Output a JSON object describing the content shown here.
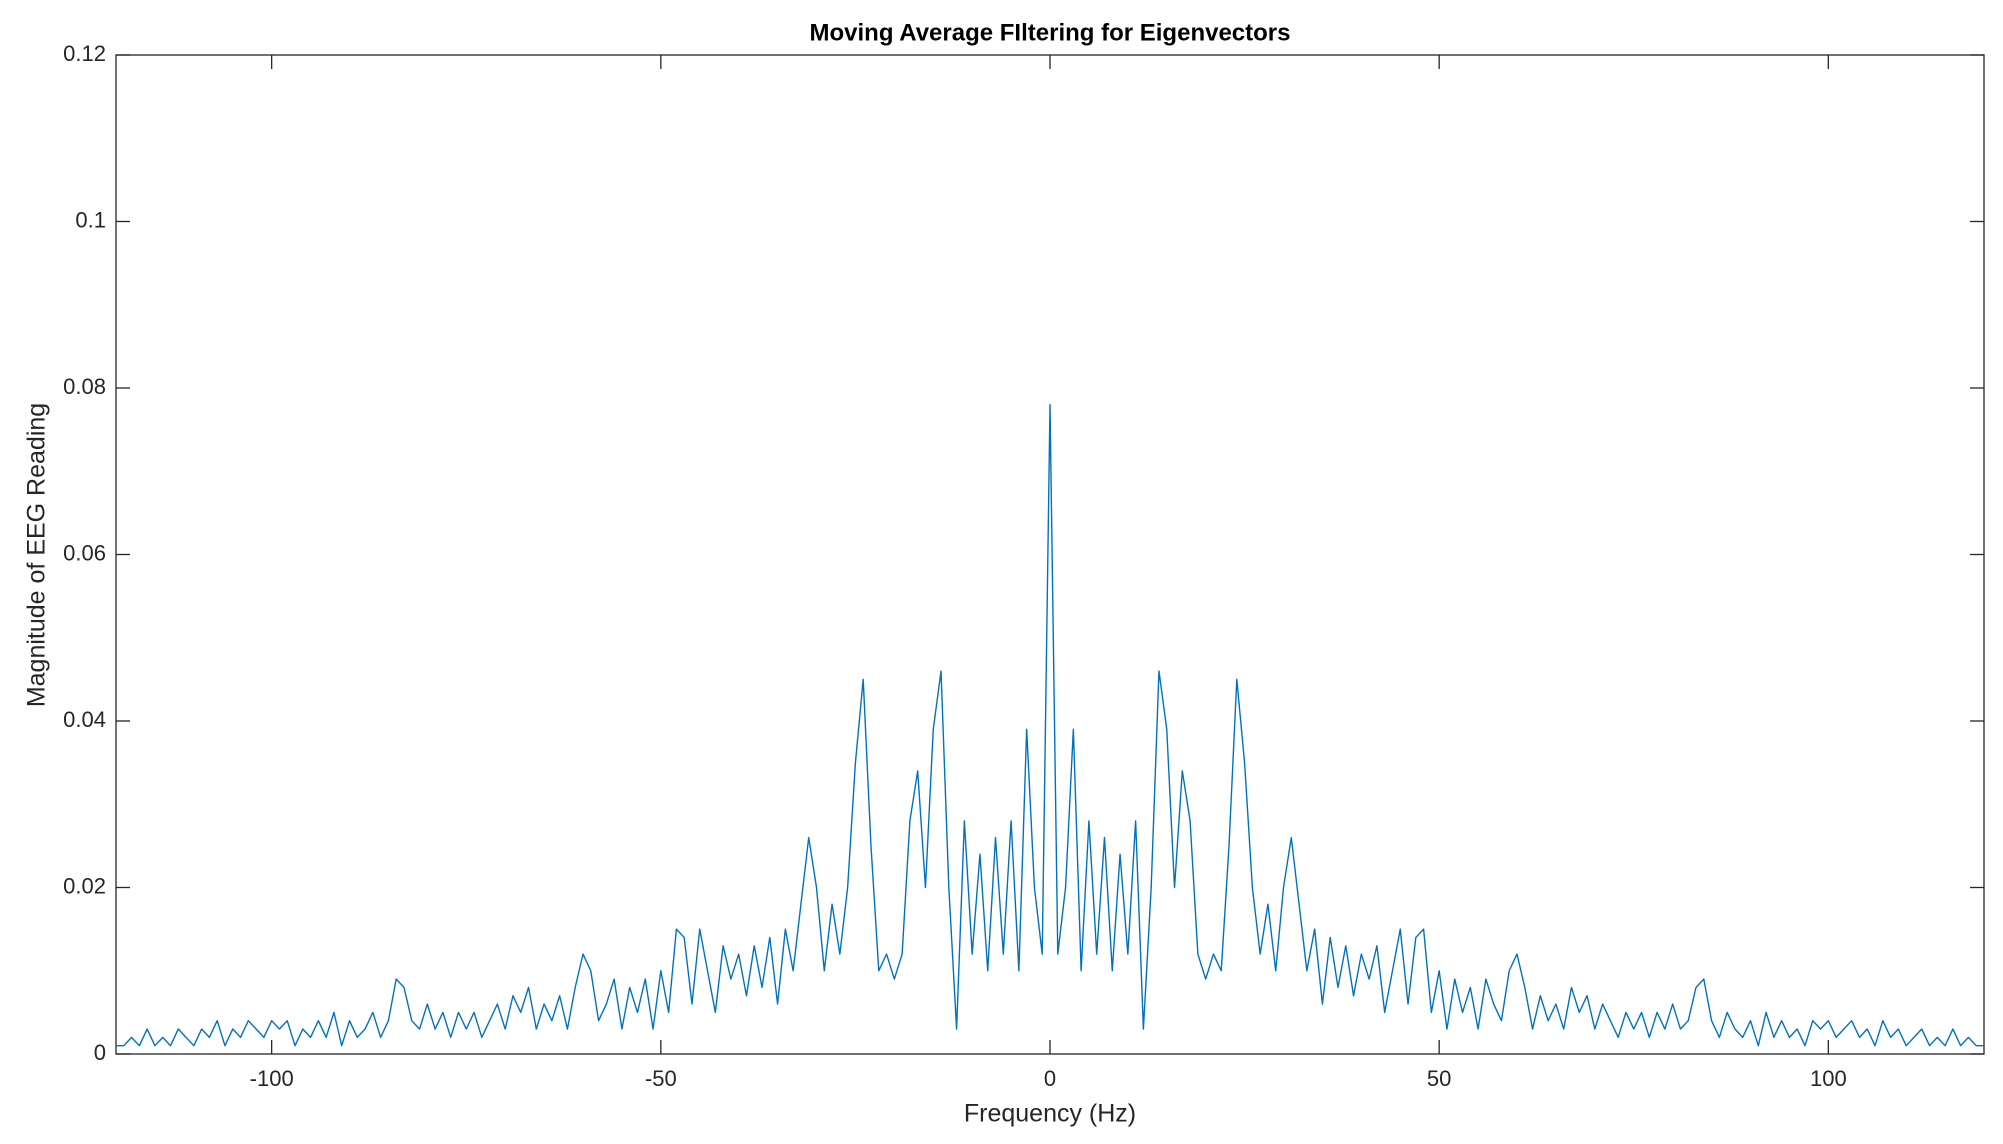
{
  "chart_data": {
    "type": "line",
    "title": "Moving Average FIltering for Eigenvectors",
    "x_label": "Frequency (Hz)",
    "y_label": "Magnitude of EEG Reading",
    "color": "#0072bd",
    "xlim": [
      -120,
      120
    ],
    "ylim": [
      0,
      0.12
    ],
    "xticks": [
      -100,
      -50,
      0,
      50,
      100
    ],
    "yticks": [
      0,
      0.02,
      0.04,
      0.06,
      0.08,
      0.1,
      0.12
    ],
    "x": [
      -120,
      -119,
      -118,
      -117,
      -116,
      -115,
      -114,
      -113,
      -112,
      -111,
      -110,
      -109,
      -108,
      -107,
      -106,
      -105,
      -104,
      -103,
      -102,
      -101,
      -100,
      -99,
      -98,
      -97,
      -96,
      -95,
      -94,
      -93,
      -92,
      -91,
      -90,
      -89,
      -88,
      -87,
      -86,
      -85,
      -84,
      -83,
      -82,
      -81,
      -80,
      -79,
      -78,
      -77,
      -76,
      -75,
      -74,
      -73,
      -72,
      -71,
      -70,
      -69,
      -68,
      -67,
      -66,
      -65,
      -64,
      -63,
      -62,
      -61,
      -60,
      -59,
      -58,
      -57,
      -56,
      -55,
      -54,
      -53,
      -52,
      -51,
      -50,
      -49,
      -48,
      -47,
      -46,
      -45,
      -44,
      -43,
      -42,
      -41,
      -40,
      -39,
      -38,
      -37,
      -36,
      -35,
      -34,
      -33,
      -32,
      -31,
      -30,
      -29,
      -28,
      -27,
      -26,
      -25,
      -24,
      -23,
      -22,
      -21,
      -20,
      -19,
      -18,
      -17,
      -16,
      -15,
      -14,
      -13,
      -12,
      -11,
      -10,
      -9,
      -8,
      -7,
      -6,
      -5,
      -4,
      -3,
      -2,
      -1,
      0,
      1,
      2,
      3,
      4,
      5,
      6,
      7,
      8,
      9,
      10,
      11,
      12,
      13,
      14,
      15,
      16,
      17,
      18,
      19,
      20,
      21,
      22,
      23,
      24,
      25,
      26,
      27,
      28,
      29,
      30,
      31,
      32,
      33,
      34,
      35,
      36,
      37,
      38,
      39,
      40,
      41,
      42,
      43,
      44,
      45,
      46,
      47,
      48,
      49,
      50,
      51,
      52,
      53,
      54,
      55,
      56,
      57,
      58,
      59,
      60,
      61,
      62,
      63,
      64,
      65,
      66,
      67,
      68,
      69,
      70,
      71,
      72,
      73,
      74,
      75,
      76,
      77,
      78,
      79,
      80,
      81,
      82,
      83,
      84,
      85,
      86,
      87,
      88,
      89,
      90,
      91,
      92,
      93,
      94,
      95,
      96,
      97,
      98,
      99,
      100,
      101,
      102,
      103,
      104,
      105,
      106,
      107,
      108,
      109,
      110,
      111,
      112,
      113,
      114,
      115,
      116,
      117,
      118,
      119,
      120
    ],
    "values": [
      0.001,
      0.001,
      0.002,
      0.001,
      0.003,
      0.001,
      0.002,
      0.001,
      0.003,
      0.002,
      0.001,
      0.003,
      0.002,
      0.004,
      0.001,
      0.003,
      0.002,
      0.004,
      0.003,
      0.002,
      0.004,
      0.003,
      0.004,
      0.001,
      0.003,
      0.002,
      0.004,
      0.002,
      0.005,
      0.001,
      0.004,
      0.002,
      0.003,
      0.005,
      0.002,
      0.004,
      0.009,
      0.008,
      0.004,
      0.003,
      0.006,
      0.003,
      0.005,
      0.002,
      0.005,
      0.003,
      0.005,
      0.002,
      0.004,
      0.006,
      0.003,
      0.007,
      0.005,
      0.008,
      0.003,
      0.006,
      0.004,
      0.007,
      0.003,
      0.008,
      0.012,
      0.01,
      0.004,
      0.006,
      0.009,
      0.003,
      0.008,
      0.005,
      0.009,
      0.003,
      0.01,
      0.005,
      0.015,
      0.014,
      0.006,
      0.015,
      0.01,
      0.005,
      0.013,
      0.009,
      0.012,
      0.007,
      0.013,
      0.008,
      0.014,
      0.006,
      0.015,
      0.01,
      0.018,
      0.026,
      0.02,
      0.01,
      0.018,
      0.012,
      0.02,
      0.035,
      0.045,
      0.025,
      0.01,
      0.012,
      0.009,
      0.012,
      0.028,
      0.034,
      0.02,
      0.039,
      0.046,
      0.02,
      0.003,
      0.028,
      0.012,
      0.024,
      0.01,
      0.026,
      0.012,
      0.028,
      0.01,
      0.039,
      0.02,
      0.012,
      0.078,
      0.012,
      0.02,
      0.039,
      0.01,
      0.028,
      0.012,
      0.026,
      0.01,
      0.024,
      0.012,
      0.028,
      0.003,
      0.02,
      0.046,
      0.039,
      0.02,
      0.034,
      0.028,
      0.012,
      0.009,
      0.012,
      0.01,
      0.025,
      0.045,
      0.035,
      0.02,
      0.012,
      0.018,
      0.01,
      0.02,
      0.026,
      0.018,
      0.01,
      0.015,
      0.006,
      0.014,
      0.008,
      0.013,
      0.007,
      0.012,
      0.009,
      0.013,
      0.005,
      0.01,
      0.015,
      0.006,
      0.014,
      0.015,
      0.005,
      0.01,
      0.003,
      0.009,
      0.005,
      0.008,
      0.003,
      0.009,
      0.006,
      0.004,
      0.01,
      0.012,
      0.008,
      0.003,
      0.007,
      0.004,
      0.006,
      0.003,
      0.008,
      0.005,
      0.007,
      0.003,
      0.006,
      0.004,
      0.002,
      0.005,
      0.003,
      0.005,
      0.002,
      0.005,
      0.003,
      0.006,
      0.003,
      0.004,
      0.008,
      0.009,
      0.004,
      0.002,
      0.005,
      0.003,
      0.002,
      0.004,
      0.001,
      0.005,
      0.002,
      0.004,
      0.002,
      0.003,
      0.001,
      0.004,
      0.003,
      0.004,
      0.002,
      0.003,
      0.004,
      0.002,
      0.003,
      0.001,
      0.004,
      0.002,
      0.003,
      0.001,
      0.002,
      0.003,
      0.001,
      0.002,
      0.001,
      0.003,
      0.001,
      0.002,
      0.001,
      0.001
    ]
  }
}
